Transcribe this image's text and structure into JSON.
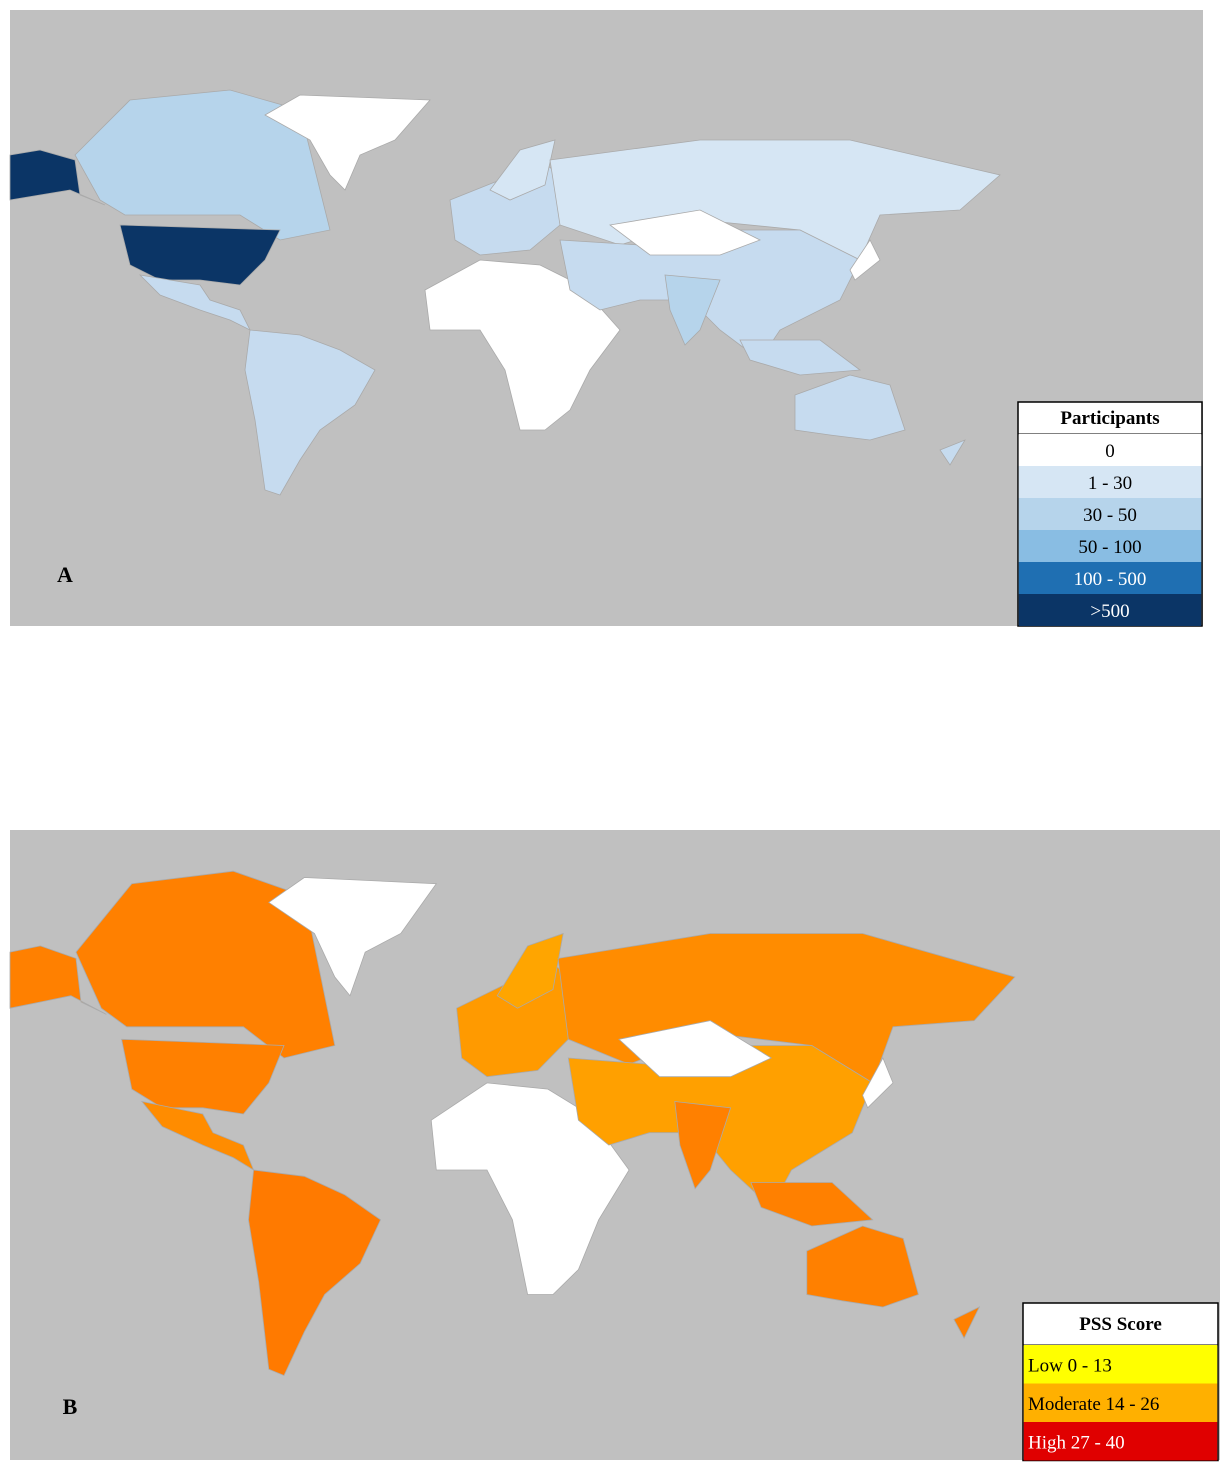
{
  "panels": [
    {
      "label": "A",
      "legend": {
        "title": "Participants",
        "items": [
          {
            "label": "0",
            "color": "#ffffff"
          },
          {
            "label": "1 - 30",
            "color": "#d6e6f4"
          },
          {
            "label": "30 - 50",
            "color": "#b6d4eb"
          },
          {
            "label": "50 - 100",
            "color": "#89bde3"
          },
          {
            "label": "100 - 500",
            "color": "#1f6fb2"
          },
          {
            "label": ">500",
            "color": "#0b3566"
          }
        ]
      }
    },
    {
      "label": "B",
      "legend": {
        "title": "PSS Score",
        "items": [
          {
            "label": "Low 0 - 13",
            "color": "#ffff00"
          },
          {
            "label": "Moderate 14 - 26",
            "color": "#ffb000"
          },
          {
            "label": "High 27 - 40",
            "color": "#e00000"
          }
        ]
      }
    }
  ]
}
